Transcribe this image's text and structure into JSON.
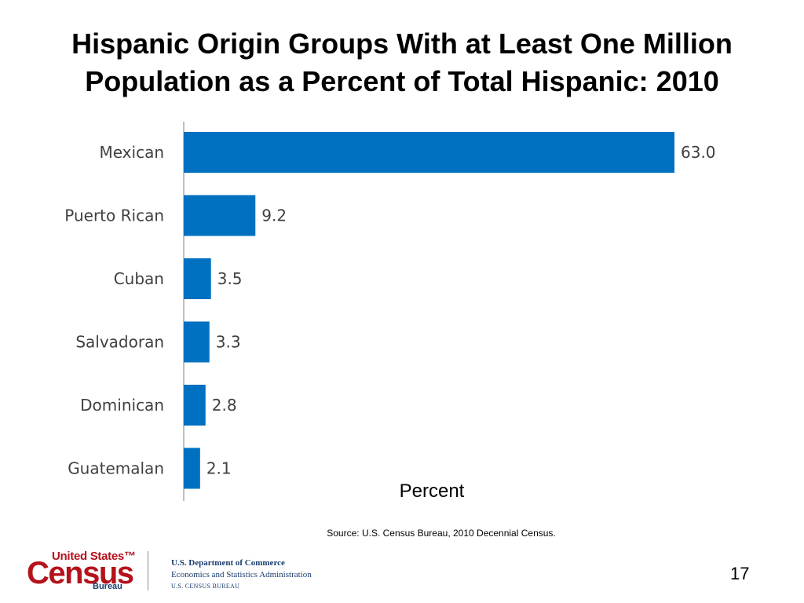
{
  "slide": {
    "title_line1": "Hispanic Origin Groups With at Least One Million",
    "title_line2": "Population as a Percent of Total Hispanic: 2010",
    "source": "Source: U.S. Census Bureau, 2010 Decennial Census.",
    "page_number": "17"
  },
  "footer": {
    "logo_line1": "United States™",
    "logo_line2": "Census",
    "logo_line3": "Bureau",
    "dept_line1": "U.S. Department of Commerce",
    "dept_line2": "Economics and Statistics Administration",
    "dept_line3": "U.S. CENSUS BUREAU"
  },
  "chart_data": {
    "type": "bar",
    "orientation": "horizontal",
    "categories": [
      "Mexican",
      "Puerto Rican",
      "Cuban",
      "Salvadoran",
      "Dominican",
      "Guatemalan"
    ],
    "values": [
      63.0,
      9.2,
      3.5,
      3.3,
      2.8,
      2.1
    ],
    "value_labels": [
      "63.0",
      "9.2",
      "3.5",
      "3.3",
      "2.8",
      "2.1"
    ],
    "title": "Hispanic Origin Groups With at Least One Million Population as a Percent of Total Hispanic: 2010",
    "xlabel": "Percent",
    "ylabel": "",
    "xlim": [
      0,
      63.0
    ],
    "grid": false,
    "legend": "none",
    "bar_color": "#0070c0"
  }
}
